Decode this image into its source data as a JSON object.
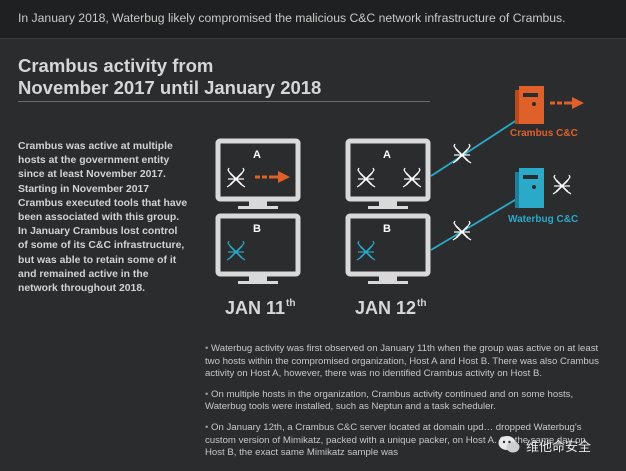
{
  "header": {
    "text": "In January 2018, Waterbug likely compromised the malicious C&C network infrastructure of Crambus."
  },
  "title": {
    "line1": "Crambus activity from",
    "line2": "November 2017 until January 2018"
  },
  "intro": "Crambus was active at multiple hosts at the government entity since at least November 2017. Starting in November 2017 Crambus executed tools that have been associated with this group. In January Crambus lost control of some of its C&C infrastructure, but was able to retain some of it and remained active in the network throughout 2018.",
  "hosts": {
    "a": "A",
    "b": "B"
  },
  "dates": {
    "jan11": "JAN 11",
    "jan11_suffix": "th",
    "jan12": "JAN 12",
    "jan12_suffix": "th"
  },
  "servers": {
    "crambus": "Crambus C&C",
    "waterbug": "Waterbug C&C"
  },
  "bullets": [
    "Waterbug activity was first observed on January 11th when the group was active on at least two hosts within the compromised organization, Host A and Host B. There was also Crambus activity on Host A, however, there was no identified Crambus activity on Host B.",
    "On multiple hosts in the organization, Crambus activity continued and on some hosts, Waterbug tools were installed, such as Neptun and a task scheduler.",
    "On January 12th, a Crambus C&C server located at domain upd… dropped Waterbug's custom version of Mimikatz, packed with a unique packer, on Host A. On the same day on Host B, the exact same Mimikatz sample was"
  ],
  "watermark": {
    "text": "维他命安全"
  },
  "colors": {
    "background": "#2b2c2e",
    "crambus": "#e0602a",
    "waterbug": "#2aa9c9",
    "monitor": "#d9d9d9"
  }
}
